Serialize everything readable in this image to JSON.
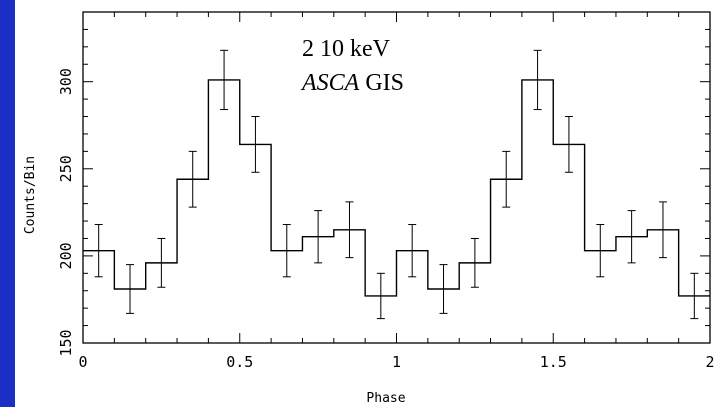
{
  "chart_data": {
    "type": "line",
    "style": "step-histogram-with-error-bars",
    "annotation": {
      "line1": "2 10 keV",
      "line2_italic": "ASCA",
      "line2_rest": " GIS"
    },
    "xlabel": "Phase",
    "ylabel": "Counts/Bin",
    "xlim": [
      0,
      2
    ],
    "ylim": [
      150,
      340
    ],
    "x_ticks": [
      0,
      0.5,
      1,
      1.5,
      2
    ],
    "x_tick_labels": [
      "0",
      "0.5",
      "1",
      "1.5",
      "2"
    ],
    "y_ticks": [
      150,
      200,
      250,
      300
    ],
    "y_tick_labels": [
      "150",
      "200",
      "250",
      "300"
    ],
    "bin_width": 0.1,
    "series": [
      {
        "x": [
          0.05,
          0.15,
          0.25,
          0.35,
          0.45,
          0.55,
          0.65,
          0.75,
          0.85,
          0.95,
          1.05,
          1.15,
          1.25,
          1.35,
          1.45,
          1.55,
          1.65,
          1.75,
          1.85,
          1.95
        ],
        "values": [
          203,
          181,
          196,
          244,
          301,
          264,
          203,
          211,
          215,
          177,
          203,
          181,
          196,
          244,
          301,
          264,
          203,
          211,
          215,
          177
        ],
        "errors": [
          15,
          14,
          14,
          16,
          17,
          16,
          15,
          15,
          16,
          13,
          15,
          14,
          14,
          16,
          17,
          16,
          15,
          15,
          16,
          13
        ]
      }
    ],
    "colors": {
      "background": "#1b2fc4",
      "plot": "#ffffff",
      "ink": "#000000"
    }
  }
}
